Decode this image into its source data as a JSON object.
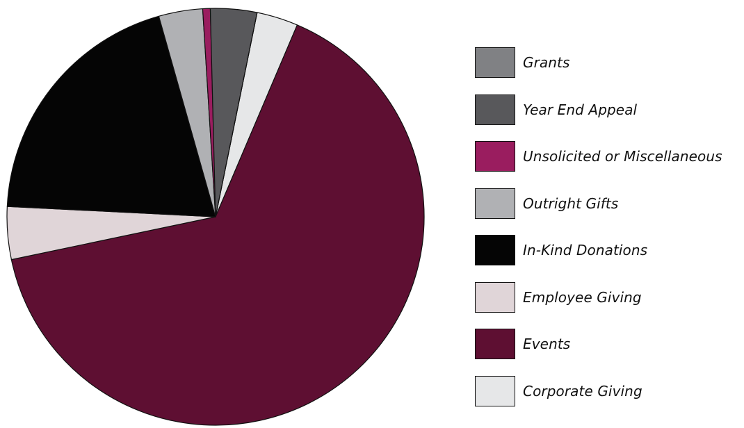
{
  "chart_data": {
    "type": "pie",
    "title": "",
    "start_angle_deg": 11.5,
    "direction": "clockwise",
    "slices": [
      {
        "label": "Corporate Giving",
        "value": 3.3,
        "color": "#e6e7e8"
      },
      {
        "label": "Events",
        "value": 67.2,
        "color": "#5e0f32"
      },
      {
        "label": "Employee Giving",
        "value": 4.2,
        "color": "#e0d5d8"
      },
      {
        "label": "In-Kind Donations",
        "value": 20.4,
        "color": "#050505"
      },
      {
        "label": "Outright Gifts",
        "value": 3.5,
        "color": "#b0b1b4"
      },
      {
        "label": "Unsolicited or Miscellaneous",
        "value": 0.6,
        "color": "#9a1d5f"
      },
      {
        "label": "Year End Appeal",
        "value": 3.7,
        "color": "#58585b"
      },
      {
        "label": "Grants",
        "value": 0.0,
        "color": "#808184"
      }
    ],
    "legend": {
      "placement": "right",
      "entries": [
        "Grants",
        "Year End Appeal",
        "Unsolicited or Miscellaneous",
        "Outright Gifts",
        "In-Kind Donations",
        "Employee Giving",
        "Events",
        "Corporate Giving"
      ]
    }
  }
}
